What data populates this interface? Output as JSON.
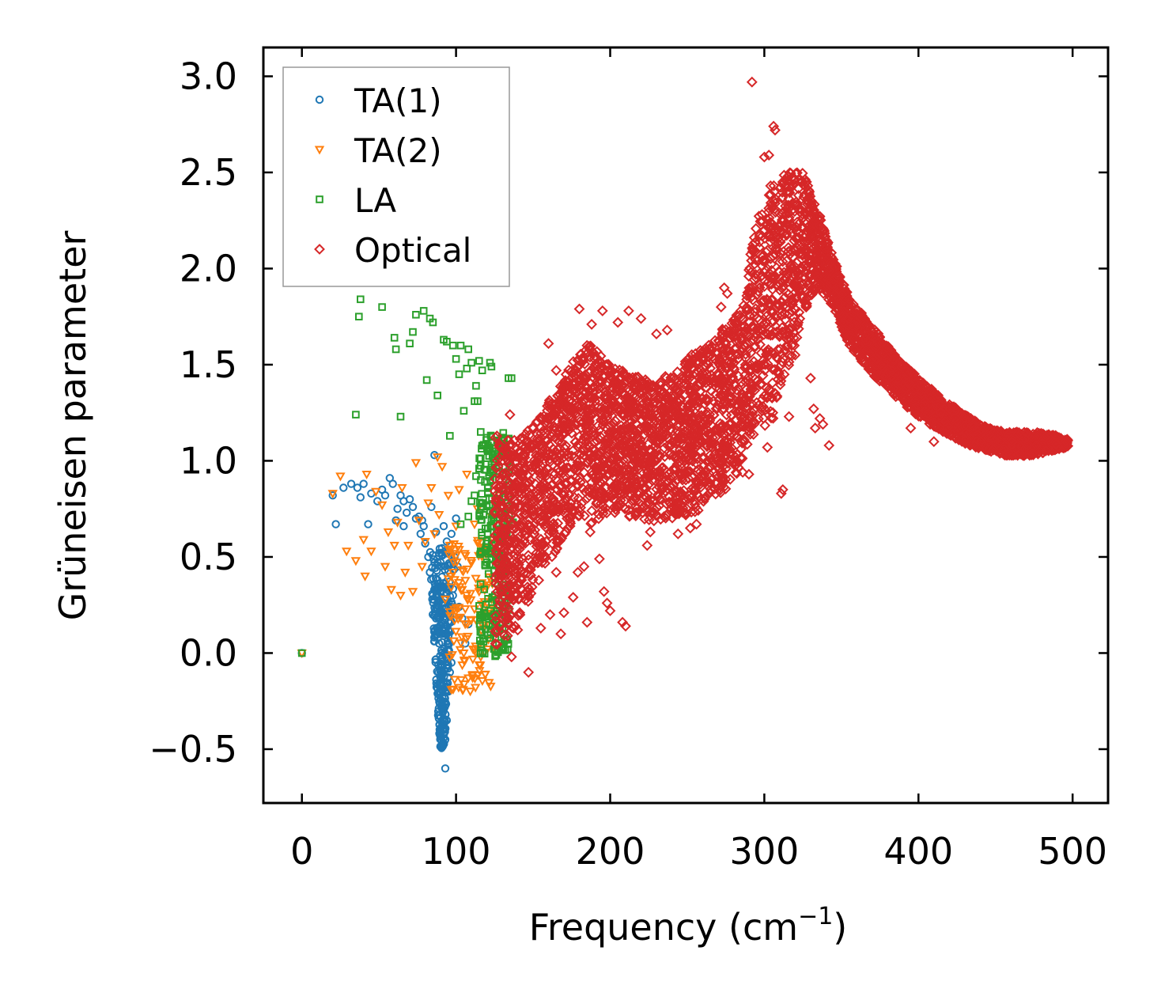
{
  "chart_data": {
    "type": "scatter",
    "title": "",
    "xlabel": "Frequency (cm",
    "xlabel_sup": "−1",
    "xlabel_close": ")",
    "ylabel": "Grüneisen parameter",
    "xlim": [
      -25,
      523
    ],
    "ylim": [
      -0.78,
      3.15
    ],
    "xticks": [
      0,
      100,
      200,
      300,
      400,
      500
    ],
    "xtick_labels": [
      "0",
      "100",
      "200",
      "300",
      "400",
      "500"
    ],
    "yticks": [
      -0.5,
      0.0,
      0.5,
      1.0,
      1.5,
      2.0,
      2.5,
      3.0
    ],
    "ytick_labels": [
      "−0.5",
      "0.0",
      "0.5",
      "1.0",
      "1.5",
      "2.0",
      "2.5",
      "3.0"
    ],
    "legend_position": "top-left",
    "series": [
      {
        "name": "TA(1)",
        "marker": "circle",
        "color": "#1f77b4",
        "points": [
          [
            0,
            0
          ],
          [
            20,
            0.82
          ],
          [
            22,
            0.67
          ],
          [
            27,
            0.86
          ],
          [
            32,
            0.88
          ],
          [
            36,
            0.86
          ],
          [
            38,
            0.81
          ],
          [
            40,
            0.88
          ],
          [
            43,
            0.67
          ],
          [
            45,
            0.83
          ],
          [
            49,
            0.79
          ],
          [
            52,
            0.85
          ],
          [
            54,
            0.82
          ],
          [
            57,
            0.91
          ],
          [
            59,
            0.88
          ],
          [
            62,
            0.75
          ],
          [
            64,
            0.82
          ],
          [
            66,
            0.79
          ],
          [
            68,
            0.73
          ],
          [
            70,
            0.8
          ],
          [
            72,
            0.76
          ],
          [
            74,
            0.7
          ],
          [
            76,
            0.71
          ],
          [
            77,
            0.62
          ],
          [
            79,
            0.66
          ],
          [
            80,
            0.57
          ],
          [
            82,
            0.5
          ],
          [
            83,
            0.42
          ],
          [
            84,
            0.76
          ],
          [
            85,
            0.3
          ],
          [
            86,
            0.47
          ],
          [
            87,
            0.18
          ],
          [
            87,
            0.63
          ],
          [
            88,
            0.25
          ],
          [
            88,
            0.38
          ],
          [
            89,
            0.05
          ],
          [
            89,
            0.52
          ],
          [
            90,
            -0.1
          ],
          [
            90,
            0.21
          ],
          [
            91,
            -0.25
          ],
          [
            91,
            0.35
          ],
          [
            92,
            -0.4
          ],
          [
            92,
            0.1
          ],
          [
            93,
            -0.6
          ],
          [
            93,
            -0.45
          ],
          [
            93,
            0.28
          ],
          [
            94,
            -0.35
          ],
          [
            94,
            0.58
          ],
          [
            95,
            -0.2
          ],
          [
            95,
            0.02
          ],
          [
            95,
            0.43
          ],
          [
            96,
            -0.1
          ],
          [
            96,
            0.16
          ],
          [
            97,
            0.62
          ],
          [
            97,
            -0.05
          ],
          [
            98,
            0.3
          ],
          [
            99,
            0.5
          ],
          [
            100,
            0.7
          ],
          [
            101,
            0.45
          ],
          [
            102,
            0.24
          ],
          [
            104,
            0.18
          ],
          [
            106,
            0.05
          ],
          [
            108,
            0.15
          ],
          [
            78,
            0.69
          ],
          [
            86,
            1.03
          ],
          [
            92,
            0.66
          ],
          [
            61,
            0.69
          ],
          [
            66,
            0.66
          ]
        ],
        "cluster": {
          "x_min": 86,
          "x_max": 100,
          "y_min": -0.5,
          "y_max": 0.55,
          "count": 280
        }
      },
      {
        "name": "TA(2)",
        "marker": "triangle-down",
        "color": "#ff7f0e",
        "points": [
          [
            0,
            0
          ],
          [
            20,
            0.83
          ],
          [
            25,
            0.92
          ],
          [
            29,
            0.53
          ],
          [
            35,
            0.48
          ],
          [
            40,
            0.59
          ],
          [
            41,
            0.4
          ],
          [
            42,
            0.93
          ],
          [
            45,
            0.53
          ],
          [
            48,
            0.84
          ],
          [
            52,
            0.77
          ],
          [
            54,
            0.45
          ],
          [
            56,
            0.63
          ],
          [
            58,
            0.33
          ],
          [
            60,
            0.56
          ],
          [
            62,
            0.68
          ],
          [
            64,
            0.3
          ],
          [
            65,
            0.86
          ],
          [
            67,
            0.42
          ],
          [
            69,
            0.56
          ],
          [
            72,
            0.32
          ],
          [
            74,
            0.99
          ],
          [
            76,
            0.69
          ],
          [
            78,
            0.45
          ],
          [
            80,
            0.58
          ],
          [
            82,
            0.78
          ],
          [
            84,
            0.86
          ],
          [
            86,
            0.62
          ],
          [
            88,
            1.02
          ],
          [
            89,
            0.72
          ],
          [
            91,
            0.97
          ],
          [
            93,
            0.28
          ],
          [
            95,
            0.82
          ],
          [
            96,
            0.56
          ],
          [
            98,
            0.42
          ],
          [
            99,
            0.17
          ],
          [
            100,
            0.66
          ],
          [
            102,
            0.85
          ],
          [
            104,
            0.33
          ],
          [
            105,
            0.0
          ],
          [
            106,
            0.23
          ],
          [
            107,
            0.93
          ],
          [
            108,
            -0.13
          ],
          [
            110,
            0.47
          ],
          [
            111,
            0.02
          ],
          [
            112,
            0.67
          ],
          [
            114,
            0.75
          ],
          [
            115,
            0.32
          ],
          [
            116,
            -0.02
          ],
          [
            118,
            0.13
          ],
          [
            120,
            0.52
          ],
          [
            121,
            0.07
          ],
          [
            123,
            0.71
          ],
          [
            124,
            0.39
          ],
          [
            126,
            0.01
          ],
          [
            128,
            0.82
          ]
        ],
        "cluster": {
          "x_min": 95,
          "x_max": 125,
          "y_min": -0.2,
          "y_max": 0.6,
          "count": 120
        }
      },
      {
        "name": "LA",
        "marker": "square",
        "color": "#2ca02c",
        "points": [
          [
            0,
            0
          ],
          [
            35,
            1.24
          ],
          [
            37,
            1.75
          ],
          [
            38,
            1.84
          ],
          [
            52,
            1.8
          ],
          [
            60,
            1.64
          ],
          [
            61,
            1.58
          ],
          [
            64,
            1.23
          ],
          [
            70,
            1.61
          ],
          [
            72,
            1.67
          ],
          [
            74,
            1.76
          ],
          [
            79,
            1.78
          ],
          [
            81,
            1.42
          ],
          [
            83,
            1.74
          ],
          [
            85,
            1.72
          ],
          [
            88,
            1.34
          ],
          [
            92,
            1.63
          ],
          [
            94,
            1.62
          ],
          [
            96,
            1.13
          ],
          [
            98,
            1.6
          ],
          [
            100,
            1.53
          ],
          [
            102,
            1.45
          ],
          [
            103,
            1.6
          ],
          [
            105,
            1.26
          ],
          [
            107,
            1.48
          ],
          [
            108,
            1.58
          ],
          [
            110,
            1.51
          ],
          [
            112,
            1.31
          ],
          [
            113,
            1.39
          ],
          [
            114,
            1.31
          ],
          [
            115,
            1.52
          ],
          [
            116,
            1.15
          ],
          [
            117,
            1.47
          ],
          [
            119,
            1.08
          ],
          [
            120,
            1.12
          ],
          [
            122,
            1.51
          ],
          [
            123,
            1.49
          ],
          [
            124,
            1.01
          ],
          [
            125,
            0.99
          ],
          [
            134,
            1.43
          ],
          [
            136,
            1.43
          ],
          [
            103,
            0.67
          ],
          [
            108,
            0.71
          ],
          [
            110,
            0.79
          ],
          [
            112,
            0.82
          ],
          [
            113,
            0.92
          ],
          [
            115,
            0.96
          ],
          [
            127,
            0.25
          ],
          [
            131,
            0.1
          ],
          [
            137,
            0.68
          ],
          [
            131,
            0.81
          ]
        ],
        "cluster": {
          "x_min": 115,
          "x_max": 135,
          "y_min": -0.02,
          "y_max": 1.15,
          "count": 260
        }
      },
      {
        "name": "Optical",
        "marker": "diamond",
        "color": "#d62728",
        "band": [
          [
            125,
            0.0,
            1.15
          ],
          [
            140,
            0.15,
            1.1
          ],
          [
            155,
            0.4,
            1.25
          ],
          [
            170,
            0.6,
            1.45
          ],
          [
            185,
            0.65,
            1.62
          ],
          [
            200,
            0.72,
            1.5
          ],
          [
            215,
            0.7,
            1.45
          ],
          [
            230,
            0.68,
            1.4
          ],
          [
            245,
            0.7,
            1.5
          ],
          [
            260,
            0.75,
            1.6
          ],
          [
            275,
            0.85,
            1.7
          ],
          [
            285,
            0.95,
            1.8
          ],
          [
            295,
            1.1,
            2.25
          ],
          [
            305,
            1.2,
            2.45
          ],
          [
            315,
            1.45,
            2.5
          ],
          [
            325,
            1.75,
            2.5
          ],
          [
            335,
            1.9,
            2.3
          ],
          [
            345,
            1.8,
            2.05
          ],
          [
            355,
            1.6,
            1.85
          ],
          [
            370,
            1.45,
            1.7
          ],
          [
            385,
            1.33,
            1.55
          ],
          [
            400,
            1.23,
            1.43
          ],
          [
            415,
            1.15,
            1.33
          ],
          [
            430,
            1.09,
            1.24
          ],
          [
            445,
            1.05,
            1.17
          ],
          [
            460,
            1.02,
            1.15
          ],
          [
            475,
            1.03,
            1.15
          ],
          [
            490,
            1.06,
            1.13
          ],
          [
            497,
            1.07,
            1.11
          ]
        ],
        "band_count": 5200,
        "points": [
          [
            292,
            2.97
          ],
          [
            306,
            2.74
          ],
          [
            307,
            2.72
          ],
          [
            300,
            2.58
          ],
          [
            303,
            2.59
          ],
          [
            180,
            1.79
          ],
          [
            195,
            1.78
          ],
          [
            212,
            1.78
          ],
          [
            220,
            1.74
          ],
          [
            237,
            1.68
          ],
          [
            274,
            1.9
          ],
          [
            276,
            1.87
          ],
          [
            272,
            1.8
          ],
          [
            188,
            1.71
          ],
          [
            205,
            1.72
          ],
          [
            230,
            1.66
          ],
          [
            200,
            0.82
          ],
          [
            208,
            0.16
          ],
          [
            210,
            0.14
          ],
          [
            196,
            0.32
          ],
          [
            200,
            0.22
          ],
          [
            198,
            0.26
          ],
          [
            183,
            0.45
          ],
          [
            185,
            0.16
          ],
          [
            176,
            0.29
          ],
          [
            179,
            0.42
          ],
          [
            170,
            0.21
          ],
          [
            168,
            0.1
          ],
          [
            172,
            0.7
          ],
          [
            187,
            0.63
          ],
          [
            193,
            0.49
          ],
          [
            147,
            -0.1
          ],
          [
            136,
            -0.02
          ],
          [
            140,
            0.12
          ],
          [
            155,
            0.13
          ],
          [
            161,
            0.2
          ],
          [
            165,
            0.42
          ],
          [
            252,
            0.65
          ],
          [
            256,
            0.67
          ],
          [
            244,
            0.62
          ],
          [
            224,
            0.56
          ],
          [
            226,
            0.63
          ],
          [
            286,
            0.94
          ],
          [
            290,
            0.93
          ],
          [
            302,
            1.07
          ],
          [
            330,
            1.43
          ],
          [
            332,
            1.27
          ],
          [
            333,
            1.17
          ],
          [
            336,
            1.22
          ],
          [
            338,
            1.19
          ],
          [
            316,
            1.23
          ],
          [
            320,
            1.55
          ],
          [
            342,
            1.08
          ],
          [
            308,
            1.33
          ],
          [
            311,
            0.83
          ],
          [
            312,
            0.85
          ],
          [
            160,
            1.61
          ],
          [
            165,
            1.47
          ],
          [
            143,
            1.0
          ],
          [
            138,
            0.58
          ],
          [
            135,
            1.24
          ],
          [
            130,
            0.85
          ],
          [
            395,
            1.17
          ],
          [
            410,
            1.1
          ]
        ]
      }
    ]
  }
}
